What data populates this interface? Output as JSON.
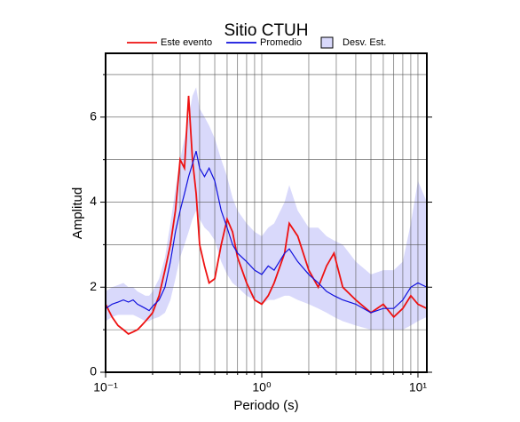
{
  "chart_data": {
    "type": "line",
    "title": "Sitio CTUH",
    "x_label": "Periodo (s)",
    "y_label": "Amplitud",
    "x_scale": "log",
    "grid": true,
    "x": [
      0.1,
      0.11,
      0.12,
      0.13,
      0.14,
      0.15,
      0.16,
      0.17,
      0.18,
      0.19,
      0.2,
      0.22,
      0.24,
      0.26,
      0.28,
      0.3,
      0.32,
      0.34,
      0.36,
      0.38,
      0.4,
      0.43,
      0.46,
      0.5,
      0.55,
      0.6,
      0.65,
      0.7,
      0.8,
      0.9,
      1.0,
      1.1,
      1.2,
      1.4,
      1.5,
      1.7,
      2.0,
      2.3,
      2.6,
      2.9,
      3.3,
      4.0,
      5.0,
      6.0,
      7.0,
      8.0,
      9.0,
      10,
      11.4
    ],
    "band": {
      "name": "Desv. Est.",
      "color": "#d9d9fb",
      "lower": [
        1.2,
        1.3,
        1.35,
        1.35,
        1.35,
        1.35,
        1.3,
        1.25,
        1.2,
        1.2,
        1.25,
        1.3,
        1.4,
        1.7,
        2.2,
        2.7,
        3.0,
        3.3,
        3.6,
        3.8,
        3.6,
        3.4,
        3.3,
        3.1,
        2.6,
        2.3,
        2.1,
        2.0,
        1.8,
        1.7,
        1.6,
        1.7,
        1.7,
        1.8,
        1.8,
        1.7,
        1.6,
        1.5,
        1.4,
        1.3,
        1.2,
        1.1,
        1.0,
        1.0,
        1.0,
        1.0,
        1.1,
        1.2,
        1.3
      ],
      "upper": [
        1.9,
        2.0,
        2.05,
        2.1,
        2.0,
        2.0,
        1.9,
        1.85,
        1.8,
        1.8,
        1.9,
        2.2,
        2.7,
        3.5,
        4.3,
        5.0,
        5.5,
        6.0,
        6.5,
        6.7,
        6.2,
        6.0,
        5.8,
        5.5,
        5.0,
        4.6,
        4.1,
        3.8,
        3.5,
        3.3,
        3.2,
        3.4,
        3.5,
        4.0,
        4.4,
        3.8,
        3.4,
        3.4,
        3.2,
        3.1,
        3.0,
        2.6,
        2.3,
        2.4,
        2.4,
        2.6,
        3.5,
        4.5,
        4.0
      ]
    },
    "series": [
      {
        "name": "Este evento",
        "color": "#ee1111",
        "values": [
          1.6,
          1.3,
          1.1,
          1.0,
          0.9,
          0.95,
          1.0,
          1.1,
          1.2,
          1.3,
          1.4,
          1.8,
          2.4,
          3.0,
          3.8,
          5.0,
          4.8,
          6.5,
          5.0,
          4.2,
          3.0,
          2.5,
          2.1,
          2.2,
          3.0,
          3.6,
          3.3,
          2.7,
          2.1,
          1.7,
          1.6,
          1.8,
          2.1,
          2.8,
          3.5,
          3.2,
          2.4,
          2.0,
          2.5,
          2.8,
          2.0,
          1.7,
          1.4,
          1.6,
          1.3,
          1.5,
          1.8,
          1.6,
          1.5
        ]
      },
      {
        "name": "Promedio",
        "color": "#1111dd",
        "values": [
          1.5,
          1.6,
          1.65,
          1.7,
          1.65,
          1.7,
          1.6,
          1.55,
          1.5,
          1.45,
          1.55,
          1.7,
          2.0,
          2.6,
          3.3,
          3.8,
          4.2,
          4.6,
          4.9,
          5.2,
          4.8,
          4.6,
          4.8,
          4.5,
          3.8,
          3.4,
          3.0,
          2.8,
          2.6,
          2.4,
          2.3,
          2.5,
          2.4,
          2.8,
          2.9,
          2.6,
          2.3,
          2.1,
          1.9,
          1.8,
          1.7,
          1.6,
          1.4,
          1.5,
          1.5,
          1.7,
          2.0,
          2.1,
          2.0
        ]
      }
    ],
    "xlim": [
      0.1,
      11.4
    ],
    "ylim": [
      0,
      7.5
    ],
    "xticks": [
      {
        "value": 0.1,
        "label": "10⁻¹"
      },
      {
        "value": 1,
        "label": "10⁰"
      },
      {
        "value": 10,
        "label": "10¹"
      }
    ],
    "minor_xticks": [
      0.2,
      0.3,
      0.4,
      0.5,
      0.6,
      0.7,
      0.8,
      0.9,
      2,
      3,
      4,
      5,
      6,
      7,
      8,
      9
    ],
    "yticks": [
      0,
      2,
      4,
      6
    ],
    "minor_yticks": [
      1,
      3,
      5,
      7
    ]
  }
}
